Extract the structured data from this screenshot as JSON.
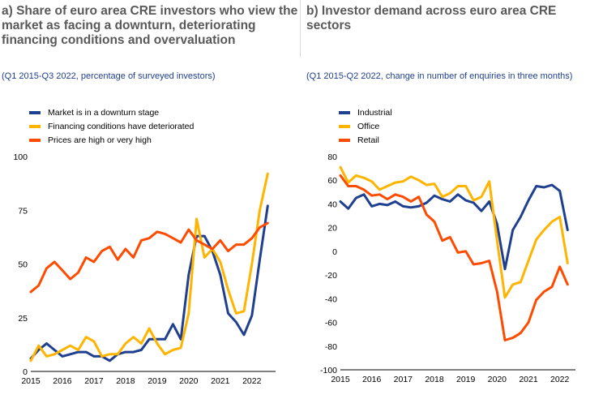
{
  "panels": {
    "a": {
      "title": "a) Share of euro area CRE investors who view the market as facing a downturn, deteriorating financing conditions and overvaluation",
      "subtitle": "(Q1 2015-Q3 2022, percentage of surveyed investors)"
    },
    "b": {
      "title": "b) Investor demand across euro area CRE sectors",
      "subtitle": "(Q1 2015-Q2 2022, change in number of enquiries in three months)"
    }
  },
  "chart_data": [
    {
      "type": "line",
      "title": "a) Share of euro area CRE investors who view the market as facing a downturn, deteriorating financing conditions and overvaluation",
      "subtitle": "(Q1 2015-Q3 2022, percentage of surveyed investors)",
      "x_ticks": [
        "2015",
        "2016",
        "2017",
        "2018",
        "2019",
        "2020",
        "2021",
        "2022"
      ],
      "y_ticks": [
        "0",
        "25",
        "50",
        "75",
        "100"
      ],
      "ylim": [
        0,
        100
      ],
      "xlim": [
        2015,
        2022.75
      ],
      "grid": false,
      "legend_position": "top-left",
      "series": [
        {
          "name": "Market is in a downturn stage",
          "color": "#1f3f8f",
          "x": [
            2015,
            2015.25,
            2015.5,
            2015.75,
            2016,
            2016.25,
            2016.5,
            2016.75,
            2017,
            2017.25,
            2017.5,
            2017.75,
            2018,
            2018.25,
            2018.5,
            2018.75,
            2019,
            2019.25,
            2019.5,
            2019.75,
            2020,
            2020.25,
            2020.5,
            2020.75,
            2021,
            2021.25,
            2021.5,
            2021.75,
            2022,
            2022.25,
            2022.5
          ],
          "y": [
            6,
            10,
            13,
            10,
            7,
            8,
            9,
            9,
            7,
            7,
            5,
            8,
            9,
            9,
            10,
            15,
            15,
            15,
            22,
            15,
            45,
            63,
            63,
            56,
            45,
            27,
            23,
            17,
            26,
            52,
            77
          ]
        },
        {
          "name": "Financing conditions have deteriorated",
          "color": "#ffb400",
          "x": [
            2015,
            2015.25,
            2015.5,
            2015.75,
            2016,
            2016.25,
            2016.5,
            2016.75,
            2017,
            2017.25,
            2017.5,
            2017.75,
            2018,
            2018.25,
            2018.5,
            2018.75,
            2019,
            2019.25,
            2019.5,
            2019.75,
            2020,
            2020.25,
            2020.5,
            2020.75,
            2021,
            2021.25,
            2021.5,
            2021.75,
            2022,
            2022.25,
            2022.5
          ],
          "y": [
            5,
            12,
            7,
            8,
            10,
            12,
            10,
            16,
            14,
            7,
            8,
            8,
            13,
            16,
            13,
            20,
            13,
            8,
            10,
            11,
            27,
            71,
            53,
            57,
            51,
            38,
            27,
            28,
            50,
            75,
            92
          ]
        },
        {
          "name": "Prices are high or very high",
          "color": "#ff4b00",
          "x": [
            2015,
            2015.25,
            2015.5,
            2015.75,
            2016,
            2016.25,
            2016.5,
            2016.75,
            2017,
            2017.25,
            2017.5,
            2017.75,
            2018,
            2018.25,
            2018.5,
            2018.75,
            2019,
            2019.25,
            2019.5,
            2019.75,
            2020,
            2020.25,
            2020.5,
            2020.75,
            2021,
            2021.25,
            2021.5,
            2021.75,
            2022,
            2022.25,
            2022.5
          ],
          "y": [
            37,
            40,
            48,
            51,
            47,
            43,
            46,
            53,
            51,
            56,
            58,
            52,
            57,
            53,
            61,
            62,
            65,
            64,
            62,
            60,
            66,
            61,
            59,
            57,
            61,
            56,
            59,
            59,
            62,
            67,
            69
          ]
        }
      ]
    },
    {
      "type": "line",
      "title": "b) Investor demand across euro area CRE sectors",
      "subtitle": "(Q1 2015-Q2 2022, change in number of enquiries in three months)",
      "x_ticks": [
        "2015",
        "2016",
        "2017",
        "2018",
        "2019",
        "2020",
        "2021",
        "2022"
      ],
      "y_ticks": [
        "80",
        "60",
        "40",
        "20",
        "0",
        "-20",
        "-40",
        "-60",
        "-80",
        "-100"
      ],
      "ylim": [
        -100,
        80
      ],
      "xlim": [
        2015,
        2022.5
      ],
      "grid": false,
      "legend_position": "top-left",
      "series": [
        {
          "name": "Industrial",
          "color": "#1f3f8f",
          "x": [
            2015,
            2015.25,
            2015.5,
            2015.75,
            2016,
            2016.25,
            2016.5,
            2016.75,
            2017,
            2017.25,
            2017.5,
            2017.75,
            2018,
            2018.25,
            2018.5,
            2018.75,
            2019,
            2019.25,
            2019.5,
            2019.75,
            2020,
            2020.25,
            2020.5,
            2020.75,
            2021,
            2021.25,
            2021.5,
            2021.75,
            2022,
            2022.25
          ],
          "y": [
            42,
            36,
            45,
            48,
            38,
            40,
            39,
            42,
            38,
            37,
            38,
            41,
            47,
            44,
            42,
            48,
            43,
            41,
            34,
            42,
            23,
            -15,
            18,
            29,
            43,
            55,
            54,
            56,
            51,
            18
          ]
        },
        {
          "name": "Office",
          "color": "#ffb400",
          "x": [
            2015,
            2015.25,
            2015.5,
            2015.75,
            2016,
            2016.25,
            2016.5,
            2016.75,
            2017,
            2017.25,
            2017.5,
            2017.75,
            2018,
            2018.25,
            2018.5,
            2018.75,
            2019,
            2019.25,
            2019.5,
            2019.75,
            2020,
            2020.25,
            2020.5,
            2020.75,
            2021,
            2021.25,
            2021.5,
            2021.75,
            2022,
            2022.25
          ],
          "y": [
            71,
            58,
            64,
            62,
            59,
            52,
            55,
            58,
            59,
            63,
            60,
            56,
            57,
            46,
            49,
            55,
            55,
            43,
            46,
            59,
            9,
            -39,
            -28,
            -26,
            -8,
            10,
            18,
            25,
            29,
            -10
          ]
        },
        {
          "name": "Retail",
          "color": "#ff4b00",
          "x": [
            2015,
            2015.25,
            2015.5,
            2015.75,
            2016,
            2016.25,
            2016.5,
            2016.75,
            2017,
            2017.25,
            2017.5,
            2017.75,
            2018,
            2018.25,
            2018.5,
            2018.75,
            2019,
            2019.25,
            2019.5,
            2019.75,
            2020,
            2020.25,
            2020.5,
            2020.75,
            2021,
            2021.25,
            2021.5,
            2021.75,
            2022,
            2022.25
          ],
          "y": [
            64,
            55,
            55,
            52,
            47,
            48,
            44,
            48,
            46,
            42,
            46,
            31,
            25,
            9,
            12,
            -1,
            0,
            -11,
            -10,
            -8,
            -34,
            -75,
            -73,
            -69,
            -60,
            -41,
            -34,
            -30,
            -13,
            -28
          ]
        }
      ]
    }
  ]
}
